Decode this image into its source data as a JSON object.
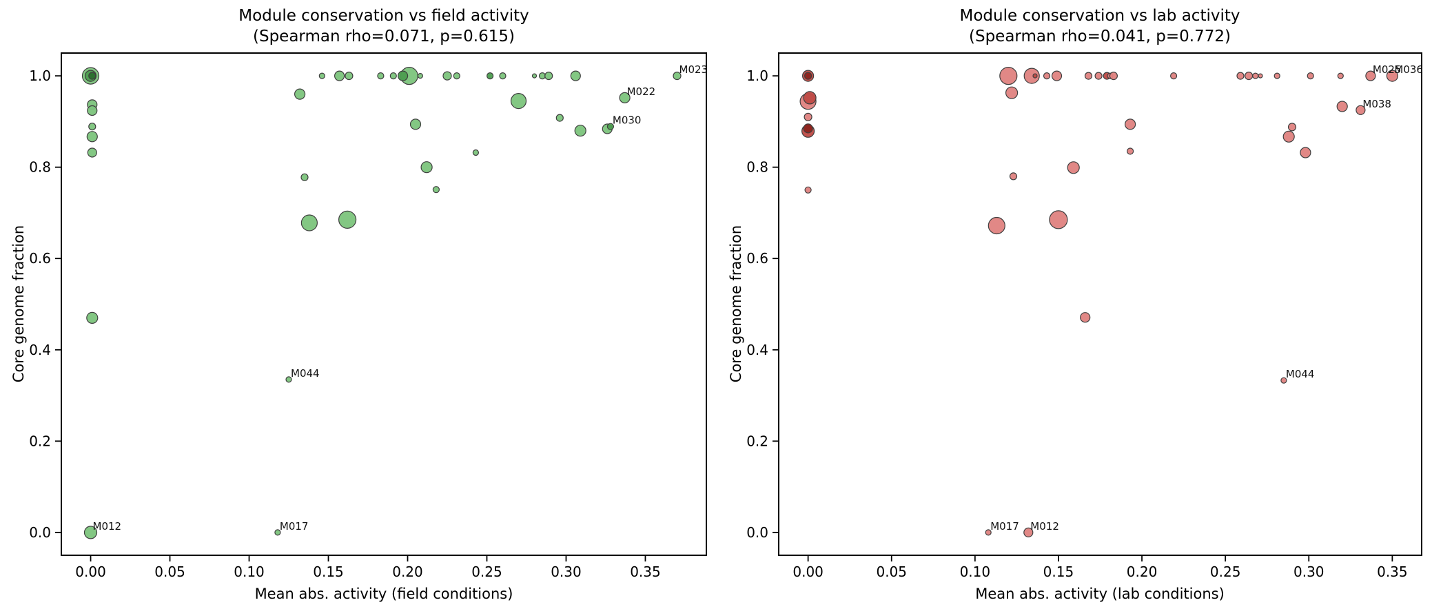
{
  "chart_data": [
    {
      "type": "scatter",
      "title": "Module conservation vs field activity",
      "subtitle": "(Spearman rho=0.071, p=0.615)",
      "spearman_rho": 0.071,
      "p_value": 0.615,
      "xlabel": "Mean abs. activity (field conditions)",
      "ylabel": "Core genome fraction",
      "xlim": [
        -0.0185,
        0.3885
      ],
      "ylim": [
        -0.05,
        1.05
      ],
      "grid": false,
      "legend": "none",
      "xtick_values": [
        0.0,
        0.05,
        0.1,
        0.15,
        0.2,
        0.25,
        0.3,
        0.35
      ],
      "xtick_labels": [
        "0.00",
        "0.05",
        "0.10",
        "0.15",
        "0.20",
        "0.25",
        "0.30",
        "0.35"
      ],
      "ytick_values": [
        0.0,
        0.2,
        0.4,
        0.6,
        0.8,
        1.0
      ],
      "ytick_labels": [
        "0.0",
        "0.2",
        "0.4",
        "0.6",
        "0.8",
        "1.0"
      ],
      "colors": {
        "light": "#7cc47c",
        "dark": "#4c9d4f",
        "darker": "#2b6e2e",
        "edge": "#3f3f3f"
      },
      "points": [
        {
          "x": 0.0,
          "y": 1.0,
          "r": 12.0,
          "shade": "l"
        },
        {
          "x": 0.0,
          "y": 1.0,
          "r": 8.0,
          "shade": "d"
        },
        {
          "x": 0.001,
          "y": 1.0,
          "r": 5.0,
          "shade": "k"
        },
        {
          "x": 0.001,
          "y": 0.937,
          "r": 7.0,
          "shade": "l"
        },
        {
          "x": 0.001,
          "y": 0.924,
          "r": 7.0,
          "shade": "l"
        },
        {
          "x": 0.001,
          "y": 0.889,
          "r": 5.0,
          "shade": "l"
        },
        {
          "x": 0.001,
          "y": 0.867,
          "r": 7.5,
          "shade": "l"
        },
        {
          "x": 0.001,
          "y": 0.832,
          "r": 6.5,
          "shade": "l"
        },
        {
          "x": 0.001,
          "y": 0.47,
          "r": 8.0,
          "shade": "l"
        },
        {
          "x": 0.0,
          "y": 0.0,
          "r": 9.0,
          "shade": "l",
          "label": "M012"
        },
        {
          "x": 0.146,
          "y": 1.0,
          "r": 4.0,
          "shade": "l"
        },
        {
          "x": 0.157,
          "y": 1.0,
          "r": 7.0,
          "shade": "l"
        },
        {
          "x": 0.163,
          "y": 1.0,
          "r": 5.5,
          "shade": "l"
        },
        {
          "x": 0.183,
          "y": 1.0,
          "r": 4.5,
          "shade": "l"
        },
        {
          "x": 0.191,
          "y": 1.0,
          "r": 4.5,
          "shade": "l"
        },
        {
          "x": 0.201,
          "y": 1.0,
          "r": 12.5,
          "shade": "l"
        },
        {
          "x": 0.197,
          "y": 1.0,
          "r": 7.0,
          "shade": "d"
        },
        {
          "x": 0.208,
          "y": 1.0,
          "r": 3.5,
          "shade": "l"
        },
        {
          "x": 0.225,
          "y": 1.0,
          "r": 6.0,
          "shade": "l"
        },
        {
          "x": 0.231,
          "y": 1.0,
          "r": 4.5,
          "shade": "l"
        },
        {
          "x": 0.252,
          "y": 1.0,
          "r": 4.5,
          "shade": "d"
        },
        {
          "x": 0.26,
          "y": 1.0,
          "r": 4.5,
          "shade": "l"
        },
        {
          "x": 0.28,
          "y": 1.0,
          "r": 3.0,
          "shade": "l"
        },
        {
          "x": 0.285,
          "y": 1.0,
          "r": 4.5,
          "shade": "l"
        },
        {
          "x": 0.289,
          "y": 1.0,
          "r": 5.5,
          "shade": "l"
        },
        {
          "x": 0.306,
          "y": 1.0,
          "r": 7.0,
          "shade": "l"
        },
        {
          "x": 0.37,
          "y": 1.0,
          "r": 5.5,
          "shade": "l",
          "label": "M023"
        },
        {
          "x": 0.132,
          "y": 0.96,
          "r": 7.5,
          "shade": "l"
        },
        {
          "x": 0.27,
          "y": 0.945,
          "r": 11.0,
          "shade": "l"
        },
        {
          "x": 0.337,
          "y": 0.952,
          "r": 7.5,
          "shade": "l",
          "label": "M022"
        },
        {
          "x": 0.205,
          "y": 0.894,
          "r": 7.5,
          "shade": "l"
        },
        {
          "x": 0.296,
          "y": 0.908,
          "r": 5.0,
          "shade": "l"
        },
        {
          "x": 0.309,
          "y": 0.88,
          "r": 8.0,
          "shade": "l"
        },
        {
          "x": 0.326,
          "y": 0.884,
          "r": 7.0,
          "shade": "l"
        },
        {
          "x": 0.328,
          "y": 0.889,
          "r": 4.5,
          "shade": "d",
          "label": "M030"
        },
        {
          "x": 0.243,
          "y": 0.832,
          "r": 4.0,
          "shade": "l"
        },
        {
          "x": 0.135,
          "y": 0.778,
          "r": 5.0,
          "shade": "l"
        },
        {
          "x": 0.212,
          "y": 0.8,
          "r": 8.0,
          "shade": "l"
        },
        {
          "x": 0.218,
          "y": 0.751,
          "r": 4.5,
          "shade": "l"
        },
        {
          "x": 0.138,
          "y": 0.678,
          "r": 11.5,
          "shade": "l"
        },
        {
          "x": 0.162,
          "y": 0.685,
          "r": 12.5,
          "shade": "l"
        },
        {
          "x": 0.125,
          "y": 0.335,
          "r": 4.0,
          "shade": "l",
          "label": "M044"
        },
        {
          "x": 0.118,
          "y": 0.0,
          "r": 4.0,
          "shade": "l",
          "label": "M017"
        }
      ]
    },
    {
      "type": "scatter",
      "title": "Module conservation vs lab activity",
      "subtitle": "(Spearman rho=0.041, p=0.772)",
      "spearman_rho": 0.041,
      "p_value": 0.772,
      "xlabel": "Mean abs. activity (lab conditions)",
      "ylabel": "Core genome fraction",
      "xlim": [
        -0.0176,
        0.3676
      ],
      "ylim": [
        -0.05,
        1.05
      ],
      "grid": false,
      "legend": "none",
      "xtick_values": [
        0.0,
        0.05,
        0.1,
        0.15,
        0.2,
        0.25,
        0.3,
        0.35
      ],
      "xtick_labels": [
        "0.00",
        "0.05",
        "0.10",
        "0.15",
        "0.20",
        "0.25",
        "0.30",
        "0.35"
      ],
      "ytick_values": [
        0.0,
        0.2,
        0.4,
        0.6,
        0.8,
        1.0
      ],
      "ytick_labels": [
        "0.0",
        "0.2",
        "0.4",
        "0.6",
        "0.8",
        "1.0"
      ],
      "colors": {
        "light": "#df8280",
        "dark": "#bf4a45",
        "darker": "#8c231c",
        "edge": "#3f3f3f"
      },
      "points": [
        {
          "x": 0.0,
          "y": 1.0,
          "r": 8.0,
          "shade": "d"
        },
        {
          "x": 0.0,
          "y": 1.0,
          "r": 5.0,
          "shade": "k"
        },
        {
          "x": 0.0,
          "y": 0.944,
          "r": 11.5,
          "shade": "l"
        },
        {
          "x": 0.001,
          "y": 0.952,
          "r": 9.0,
          "shade": "d"
        },
        {
          "x": 0.0,
          "y": 0.91,
          "r": 5.5,
          "shade": "l"
        },
        {
          "x": 0.0,
          "y": 0.879,
          "r": 9.0,
          "shade": "d"
        },
        {
          "x": 0.0,
          "y": 0.885,
          "r": 6.5,
          "shade": "k"
        },
        {
          "x": 0.0,
          "y": 0.75,
          "r": 4.5,
          "shade": "l"
        },
        {
          "x": 0.12,
          "y": 1.0,
          "r": 12.5,
          "shade": "l"
        },
        {
          "x": 0.134,
          "y": 1.0,
          "r": 11.0,
          "shade": "l"
        },
        {
          "x": 0.136,
          "y": 1.0,
          "r": 3.0,
          "shade": "d"
        },
        {
          "x": 0.143,
          "y": 1.0,
          "r": 4.5,
          "shade": "l"
        },
        {
          "x": 0.149,
          "y": 1.0,
          "r": 7.0,
          "shade": "l"
        },
        {
          "x": 0.168,
          "y": 1.0,
          "r": 5.0,
          "shade": "l"
        },
        {
          "x": 0.174,
          "y": 1.0,
          "r": 5.0,
          "shade": "l"
        },
        {
          "x": 0.179,
          "y": 1.0,
          "r": 5.0,
          "shade": "d"
        },
        {
          "x": 0.181,
          "y": 1.0,
          "r": 4.0,
          "shade": "l"
        },
        {
          "x": 0.183,
          "y": 1.0,
          "r": 5.5,
          "shade": "l"
        },
        {
          "x": 0.219,
          "y": 1.0,
          "r": 4.5,
          "shade": "l"
        },
        {
          "x": 0.259,
          "y": 1.0,
          "r": 5.0,
          "shade": "l"
        },
        {
          "x": 0.264,
          "y": 1.0,
          "r": 5.5,
          "shade": "l"
        },
        {
          "x": 0.268,
          "y": 1.0,
          "r": 4.0,
          "shade": "l"
        },
        {
          "x": 0.271,
          "y": 1.0,
          "r": 3.0,
          "shade": "l"
        },
        {
          "x": 0.281,
          "y": 1.0,
          "r": 4.0,
          "shade": "l"
        },
        {
          "x": 0.301,
          "y": 1.0,
          "r": 4.5,
          "shade": "l"
        },
        {
          "x": 0.319,
          "y": 1.0,
          "r": 4.0,
          "shade": "l"
        },
        {
          "x": 0.337,
          "y": 1.0,
          "r": 7.0,
          "shade": "l",
          "label": "M025"
        },
        {
          "x": 0.35,
          "y": 1.0,
          "r": 8.0,
          "shade": "l",
          "label": "M036"
        },
        {
          "x": 0.122,
          "y": 0.963,
          "r": 8.5,
          "shade": "l"
        },
        {
          "x": 0.32,
          "y": 0.933,
          "r": 7.5,
          "shade": "l"
        },
        {
          "x": 0.331,
          "y": 0.925,
          "r": 6.5,
          "shade": "l",
          "label": "M038"
        },
        {
          "x": 0.193,
          "y": 0.894,
          "r": 7.5,
          "shade": "l"
        },
        {
          "x": 0.29,
          "y": 0.888,
          "r": 5.5,
          "shade": "l"
        },
        {
          "x": 0.288,
          "y": 0.867,
          "r": 8.0,
          "shade": "l"
        },
        {
          "x": 0.193,
          "y": 0.835,
          "r": 4.5,
          "shade": "l"
        },
        {
          "x": 0.298,
          "y": 0.832,
          "r": 7.5,
          "shade": "l"
        },
        {
          "x": 0.159,
          "y": 0.799,
          "r": 8.5,
          "shade": "l"
        },
        {
          "x": 0.123,
          "y": 0.78,
          "r": 5.0,
          "shade": "l"
        },
        {
          "x": 0.113,
          "y": 0.672,
          "r": 12.0,
          "shade": "l"
        },
        {
          "x": 0.15,
          "y": 0.685,
          "r": 13.0,
          "shade": "l"
        },
        {
          "x": 0.166,
          "y": 0.471,
          "r": 7.0,
          "shade": "l"
        },
        {
          "x": 0.285,
          "y": 0.333,
          "r": 4.0,
          "shade": "l",
          "label": "M044"
        },
        {
          "x": 0.108,
          "y": 0.0,
          "r": 4.0,
          "shade": "l",
          "label": "M017"
        },
        {
          "x": 0.132,
          "y": 0.0,
          "r": 6.5,
          "shade": "l",
          "label": "M012"
        }
      ]
    }
  ]
}
